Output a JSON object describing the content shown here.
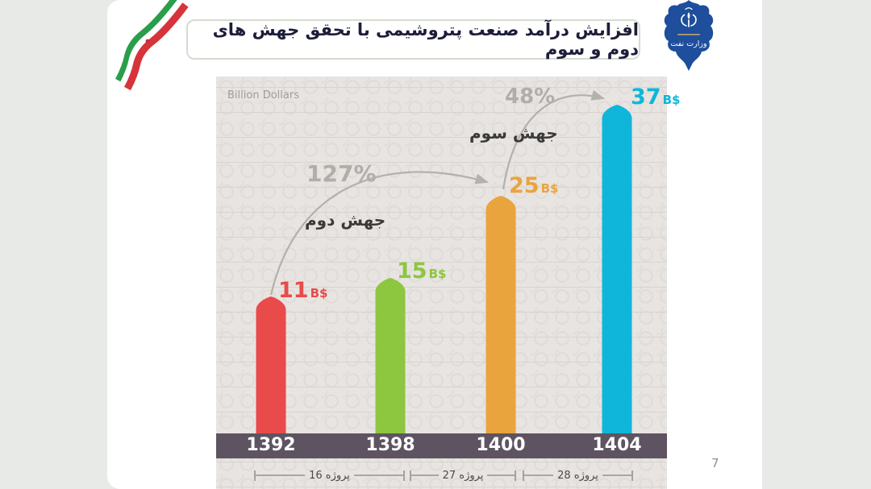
{
  "page": {
    "number": "7"
  },
  "header": {
    "title": "افزایش درآمد صنعت پتروشیمی با تحقق جهش های دوم و سوم",
    "logo_caption": "وزارت نفت"
  },
  "colors": {
    "flag_green": "#2a9e4a",
    "flag_white": "#ffffff",
    "flag_red": "#d6333b",
    "logo_blue": "#1e4e9c",
    "axis_band": "#5e5461",
    "arrow_gray": "#b4b0ac"
  },
  "chart_data": {
    "type": "bar",
    "title": "افزایش درآمد صنعت پتروشیمی با تحقق جهش های دوم و سوم",
    "unit_label": "Billion Dollars",
    "value_suffix": "B$",
    "categories": [
      "1392",
      "1398",
      "1400",
      "1404"
    ],
    "values": [
      11,
      15,
      25,
      37
    ],
    "bar_colors": [
      "#e94b4a",
      "#8dc63f",
      "#e9a43e",
      "#0fb6d9"
    ],
    "grid": true,
    "legend": false,
    "annotations": [
      {
        "percent": "127%",
        "label": "جهش دوم",
        "from_category": "1392",
        "to_category": "1400"
      },
      {
        "percent": "48%",
        "label": "جهش سوم",
        "from_category": "1400",
        "to_category": "1404"
      }
    ],
    "project_brackets": [
      {
        "label": "16 پروژه",
        "from_category": "1392",
        "to_category": "1398"
      },
      {
        "label": "27 پروژه",
        "from_category": "1398",
        "to_category": "1400"
      },
      {
        "label": "28 پروژه",
        "from_category": "1400",
        "to_category": "1404"
      }
    ]
  }
}
